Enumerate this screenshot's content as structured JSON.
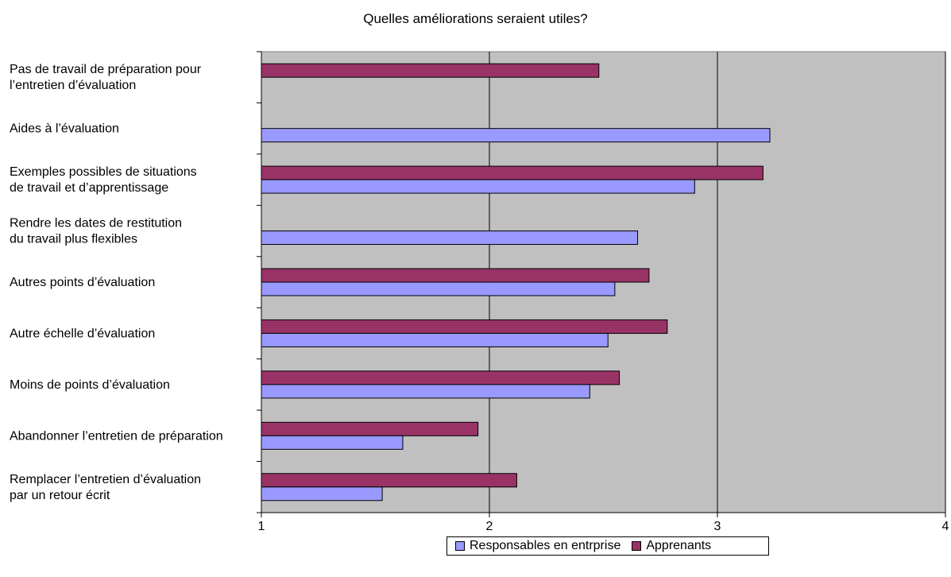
{
  "chart_data": {
    "type": "bar",
    "orientation": "horizontal",
    "title": "Quelles améliorations seraient utiles?",
    "categories": [
      [
        "Pas de travail de préparation pour",
        "l’entretien d’évaluation"
      ],
      [
        "Aides à l’évaluation"
      ],
      [
        "Exemples possibles de situations",
        "de travail et d’apprentissage"
      ],
      [
        "Rendre les dates de restitution",
        "du travail plus flexibles"
      ],
      [
        "Autres points d’évaluation"
      ],
      [
        "Autre échelle d’évaluation"
      ],
      [
        "Moins de points d’évaluation"
      ],
      [
        "Abandonner l’entretien de préparation"
      ],
      [
        "Remplacer l’entretien d’évaluation",
        "par un retour écrit"
      ]
    ],
    "series": [
      {
        "name": "Apprenants",
        "color": "#993366",
        "values": [
          2.48,
          null,
          3.2,
          null,
          2.7,
          2.78,
          2.57,
          1.95,
          2.12
        ]
      },
      {
        "name": "Responsables en entrprise",
        "color": "#9999FF",
        "values": [
          null,
          3.23,
          2.9,
          2.65,
          2.55,
          2.52,
          2.44,
          1.62,
          1.53
        ]
      }
    ],
    "xlim": [
      1,
      4
    ],
    "xticks": [
      "1",
      "2",
      "3",
      "4"
    ],
    "grid": true,
    "plot_background": "#C0C0C0",
    "legend_position": "bottom",
    "legend_order": [
      "Responsables en entrprise",
      "Apprenants"
    ]
  }
}
